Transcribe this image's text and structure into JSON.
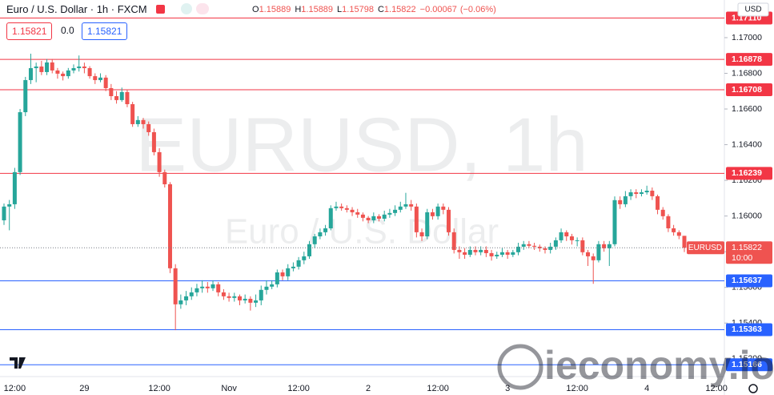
{
  "chart_data": {
    "type": "candlestick",
    "title": "Euro / U.S. Dollar · 1h · FXCM",
    "watermark": "EURUSD, 1h",
    "watermark_sub": "Euro / U.S. Dollar",
    "ohlc_letters": [
      "O",
      "H",
      "L",
      "C"
    ],
    "change": {
      "value": -0.00067,
      "label": "−0.00067"
    },
    "change_pct": {
      "value": -0.06,
      "label": "(−0.06%)"
    },
    "trade": {
      "sell": "1.15821",
      "spread": "0.0",
      "buy": "1.15821"
    },
    "currency": "USD",
    "up_color": "#26a69a",
    "down_color": "#ef5350",
    "ylim": [
      1.151,
      1.17211
    ],
    "yticks": [
      {
        "value": 1.152,
        "label": "1.15200"
      },
      {
        "value": 1.154,
        "label": "1.15400"
      },
      {
        "value": 1.156,
        "label": "1.15600"
      },
      {
        "value": 1.158,
        "label": "1.15800"
      },
      {
        "value": 1.16,
        "label": "1.16000"
      },
      {
        "value": 1.162,
        "label": "1.16200"
      },
      {
        "value": 1.164,
        "label": "1.16400"
      },
      {
        "value": 1.166,
        "label": "1.16600"
      },
      {
        "value": 1.168,
        "label": "1.16800"
      },
      {
        "value": 1.17,
        "label": "1.17000"
      }
    ],
    "xticks": [
      {
        "value": 2,
        "label": "12:00"
      },
      {
        "value": 15,
        "label": "29"
      },
      {
        "value": 29,
        "label": "12:00"
      },
      {
        "value": 42,
        "label": "Nov"
      },
      {
        "value": 55,
        "label": "12:00"
      },
      {
        "value": 68,
        "label": "2"
      },
      {
        "value": 81,
        "label": "12:00"
      },
      {
        "value": 94,
        "label": "3"
      },
      {
        "value": 107,
        "label": "12:00"
      },
      {
        "value": 120,
        "label": "4"
      },
      {
        "value": 133,
        "label": "12:00"
      }
    ],
    "levels": [
      {
        "value": 1.1711,
        "label": "1.17110",
        "color": "#f23645"
      },
      {
        "value": 1.16878,
        "color": "#f23645"
      },
      {
        "value": 1.16708,
        "color": "#f23645"
      },
      {
        "value": 1.16239,
        "color": "#f23645"
      },
      {
        "value": 1.15637,
        "color": "#2962ff"
      },
      {
        "value": 1.15363,
        "color": "#2962ff"
      },
      {
        "value": 1.15166,
        "color": "#2962ff"
      }
    ],
    "last": {
      "value": 1.15822,
      "symbol": "EURUSD",
      "countdown": "10:00"
    },
    "brand": "ieconomy.io",
    "candles": [
      [
        1.15976,
        1.1607,
        1.1595,
        1.16053
      ],
      [
        1.16053,
        1.1609,
        1.1592,
        1.16066
      ],
      [
        1.16066,
        1.1627,
        1.1604,
        1.16246
      ],
      [
        1.16246,
        1.166,
        1.1623,
        1.16582
      ],
      [
        1.16582,
        1.1678,
        1.1656,
        1.16762
      ],
      [
        1.16762,
        1.1691,
        1.1674,
        1.16829
      ],
      [
        1.16829,
        1.1686,
        1.1675,
        1.16838
      ],
      [
        1.16838,
        1.1687,
        1.1679,
        1.16807
      ],
      [
        1.16807,
        1.1688,
        1.1679,
        1.16861
      ],
      [
        1.16861,
        1.1688,
        1.168,
        1.16816
      ],
      [
        1.16816,
        1.1683,
        1.1677,
        1.16798
      ],
      [
        1.16798,
        1.1681,
        1.1676,
        1.16784
      ],
      [
        1.16784,
        1.1683,
        1.1677,
        1.16816
      ],
      [
        1.16816,
        1.1685,
        1.168,
        1.16829
      ],
      [
        1.16829,
        1.169,
        1.1681,
        1.16838
      ],
      [
        1.16838,
        1.1686,
        1.168,
        1.16829
      ],
      [
        1.16829,
        1.1684,
        1.1677,
        1.16784
      ],
      [
        1.16784,
        1.168,
        1.1674,
        1.16762
      ],
      [
        1.16762,
        1.168,
        1.1675,
        1.16776
      ],
      [
        1.16776,
        1.1679,
        1.167,
        1.16717
      ],
      [
        1.16717,
        1.1674,
        1.1665,
        1.16672
      ],
      [
        1.16672,
        1.167,
        1.1663,
        1.1665
      ],
      [
        1.1665,
        1.1672,
        1.1664,
        1.16695
      ],
      [
        1.16695,
        1.1671,
        1.1661,
        1.16627
      ],
      [
        1.16627,
        1.1664,
        1.165,
        1.16515
      ],
      [
        1.16515,
        1.1656,
        1.165,
        1.16538
      ],
      [
        1.16538,
        1.1655,
        1.1649,
        1.16515
      ],
      [
        1.16515,
        1.1653,
        1.1645,
        1.1647
      ],
      [
        1.1647,
        1.1649,
        1.1634,
        1.16358
      ],
      [
        1.16358,
        1.1638,
        1.1622,
        1.16246
      ],
      [
        1.16246,
        1.1626,
        1.1616,
        1.16178
      ],
      [
        1.16178,
        1.1619,
        1.1568,
        1.15707
      ],
      [
        1.15707,
        1.1573,
        1.1536,
        1.15505
      ],
      [
        1.15505,
        1.1556,
        1.1548,
        1.15527
      ],
      [
        1.15527,
        1.1558,
        1.155,
        1.1555
      ],
      [
        1.1555,
        1.156,
        1.1553,
        1.15572
      ],
      [
        1.15572,
        1.1562,
        1.1555,
        1.15595
      ],
      [
        1.15595,
        1.1564,
        1.1557,
        1.15604
      ],
      [
        1.15604,
        1.1563,
        1.1557,
        1.15595
      ],
      [
        1.15595,
        1.1564,
        1.1558,
        1.15617
      ],
      [
        1.15617,
        1.1563,
        1.1555,
        1.15572
      ],
      [
        1.15572,
        1.1559,
        1.1553,
        1.1555
      ],
      [
        1.1555,
        1.1557,
        1.1552,
        1.15541
      ],
      [
        1.15541,
        1.1557,
        1.1552,
        1.1555
      ],
      [
        1.1555,
        1.1556,
        1.155,
        1.15527
      ],
      [
        1.15527,
        1.1556,
        1.1551,
        1.15536
      ],
      [
        1.15536,
        1.1555,
        1.1547,
        1.15514
      ],
      [
        1.15514,
        1.1556,
        1.1549,
        1.15527
      ],
      [
        1.15527,
        1.1561,
        1.155,
        1.15586
      ],
      [
        1.15586,
        1.1564,
        1.1556,
        1.15604
      ],
      [
        1.15604,
        1.1564,
        1.1559,
        1.15617
      ],
      [
        1.15617,
        1.157,
        1.156,
        1.15684
      ],
      [
        1.15684,
        1.157,
        1.1564,
        1.15662
      ],
      [
        1.15662,
        1.1573,
        1.1564,
        1.15707
      ],
      [
        1.15707,
        1.1574,
        1.1569,
        1.15716
      ],
      [
        1.15716,
        1.1577,
        1.157,
        1.15752
      ],
      [
        1.15752,
        1.158,
        1.1573,
        1.15774
      ],
      [
        1.15774,
        1.1586,
        1.1576,
        1.15842
      ],
      [
        1.15842,
        1.159,
        1.1582,
        1.15886
      ],
      [
        1.15886,
        1.1593,
        1.1587,
        1.15909
      ],
      [
        1.15909,
        1.1595,
        1.1589,
        1.15931
      ],
      [
        1.15931,
        1.1606,
        1.1592,
        1.16044
      ],
      [
        1.16044,
        1.1608,
        1.1603,
        1.16053
      ],
      [
        1.16053,
        1.1607,
        1.1603,
        1.16044
      ],
      [
        1.16044,
        1.1606,
        1.1602,
        1.16035
      ],
      [
        1.16035,
        1.1605,
        1.16,
        1.16021
      ],
      [
        1.16021,
        1.1604,
        1.1599,
        1.16008
      ],
      [
        1.16008,
        1.1602,
        1.1597,
        1.1599
      ],
      [
        1.1599,
        1.16,
        1.1596,
        1.15976
      ],
      [
        1.15976,
        1.1602,
        1.1596,
        1.15999
      ],
      [
        1.15999,
        1.1601,
        1.1597,
        1.15985
      ],
      [
        1.15985,
        1.1603,
        1.1597,
        1.16008
      ],
      [
        1.16008,
        1.1604,
        1.1599,
        1.16017
      ],
      [
        1.16017,
        1.1606,
        1.16,
        1.16035
      ],
      [
        1.16035,
        1.1608,
        1.1602,
        1.16053
      ],
      [
        1.16053,
        1.1613,
        1.1604,
        1.16066
      ],
      [
        1.16066,
        1.1609,
        1.1603,
        1.16053
      ],
      [
        1.16053,
        1.1607,
        1.1588,
        1.15909
      ],
      [
        1.15909,
        1.1593,
        1.1586,
        1.15886
      ],
      [
        1.15886,
        1.1604,
        1.1587,
        1.16021
      ],
      [
        1.16021,
        1.1604,
        1.1598,
        1.15999
      ],
      [
        1.15999,
        1.1607,
        1.1598,
        1.16053
      ],
      [
        1.16053,
        1.1607,
        1.1601,
        1.16035
      ],
      [
        1.16035,
        1.1605,
        1.1589,
        1.15909
      ],
      [
        1.15909,
        1.1593,
        1.1579,
        1.1581
      ],
      [
        1.1581,
        1.1583,
        1.1576,
        1.15797
      ],
      [
        1.15797,
        1.1582,
        1.1576,
        1.15783
      ],
      [
        1.15783,
        1.1583,
        1.1577,
        1.1581
      ],
      [
        1.1581,
        1.1583,
        1.1578,
        1.15797
      ],
      [
        1.15797,
        1.1583,
        1.1578,
        1.1581
      ],
      [
        1.1581,
        1.1583,
        1.1577,
        1.15792
      ],
      [
        1.15792,
        1.1581,
        1.1575,
        1.15774
      ],
      [
        1.15774,
        1.158,
        1.1576,
        1.15783
      ],
      [
        1.15783,
        1.1582,
        1.1577,
        1.15797
      ],
      [
        1.15797,
        1.1581,
        1.1576,
        1.15783
      ],
      [
        1.15783,
        1.1581,
        1.1577,
        1.15797
      ],
      [
        1.15797,
        1.1585,
        1.1578,
        1.15828
      ],
      [
        1.15828,
        1.1586,
        1.1581,
        1.15842
      ],
      [
        1.15842,
        1.1586,
        1.1582,
        1.15833
      ],
      [
        1.15833,
        1.1585,
        1.1581,
        1.15828
      ],
      [
        1.15828,
        1.1584,
        1.158,
        1.15819
      ],
      [
        1.15819,
        1.1583,
        1.1579,
        1.1581
      ],
      [
        1.1581,
        1.1585,
        1.1579,
        1.15828
      ],
      [
        1.15828,
        1.1588,
        1.1581,
        1.15864
      ],
      [
        1.15864,
        1.1593,
        1.1585,
        1.15909
      ],
      [
        1.15909,
        1.1592,
        1.1586,
        1.15886
      ],
      [
        1.15886,
        1.159,
        1.1584,
        1.15864
      ],
      [
        1.15864,
        1.1588,
        1.1583,
        1.15864
      ],
      [
        1.15864,
        1.1588,
        1.1578,
        1.15797
      ],
      [
        1.15797,
        1.1581,
        1.1572,
        1.15774
      ],
      [
        1.15774,
        1.1579,
        1.1562,
        1.15752
      ],
      [
        1.15752,
        1.1586,
        1.1574,
        1.15842
      ],
      [
        1.15842,
        1.1586,
        1.158,
        1.15819
      ],
      [
        1.15819,
        1.1586,
        1.1572,
        1.15842
      ],
      [
        1.15842,
        1.1611,
        1.1583,
        1.16089
      ],
      [
        1.16089,
        1.1611,
        1.1604,
        1.16066
      ],
      [
        1.16066,
        1.1614,
        1.1605,
        1.16111
      ],
      [
        1.16111,
        1.1615,
        1.1609,
        1.16133
      ],
      [
        1.16133,
        1.1615,
        1.161,
        1.16124
      ],
      [
        1.16124,
        1.1615,
        1.1611,
        1.16133
      ],
      [
        1.16133,
        1.1617,
        1.1612,
        1.16142
      ],
      [
        1.16142,
        1.1616,
        1.1609,
        1.16111
      ],
      [
        1.16111,
        1.1612,
        1.1601,
        1.16035
      ],
      [
        1.16035,
        1.1605,
        1.1598,
        1.15999
      ],
      [
        1.15999,
        1.1601,
        1.1591,
        1.15931
      ],
      [
        1.15931,
        1.1595,
        1.1589,
        1.15909
      ],
      [
        1.15909,
        1.1592,
        1.1587,
        1.15889
      ],
      [
        1.15889,
        1.15889,
        1.15798,
        1.15822
      ]
    ]
  }
}
